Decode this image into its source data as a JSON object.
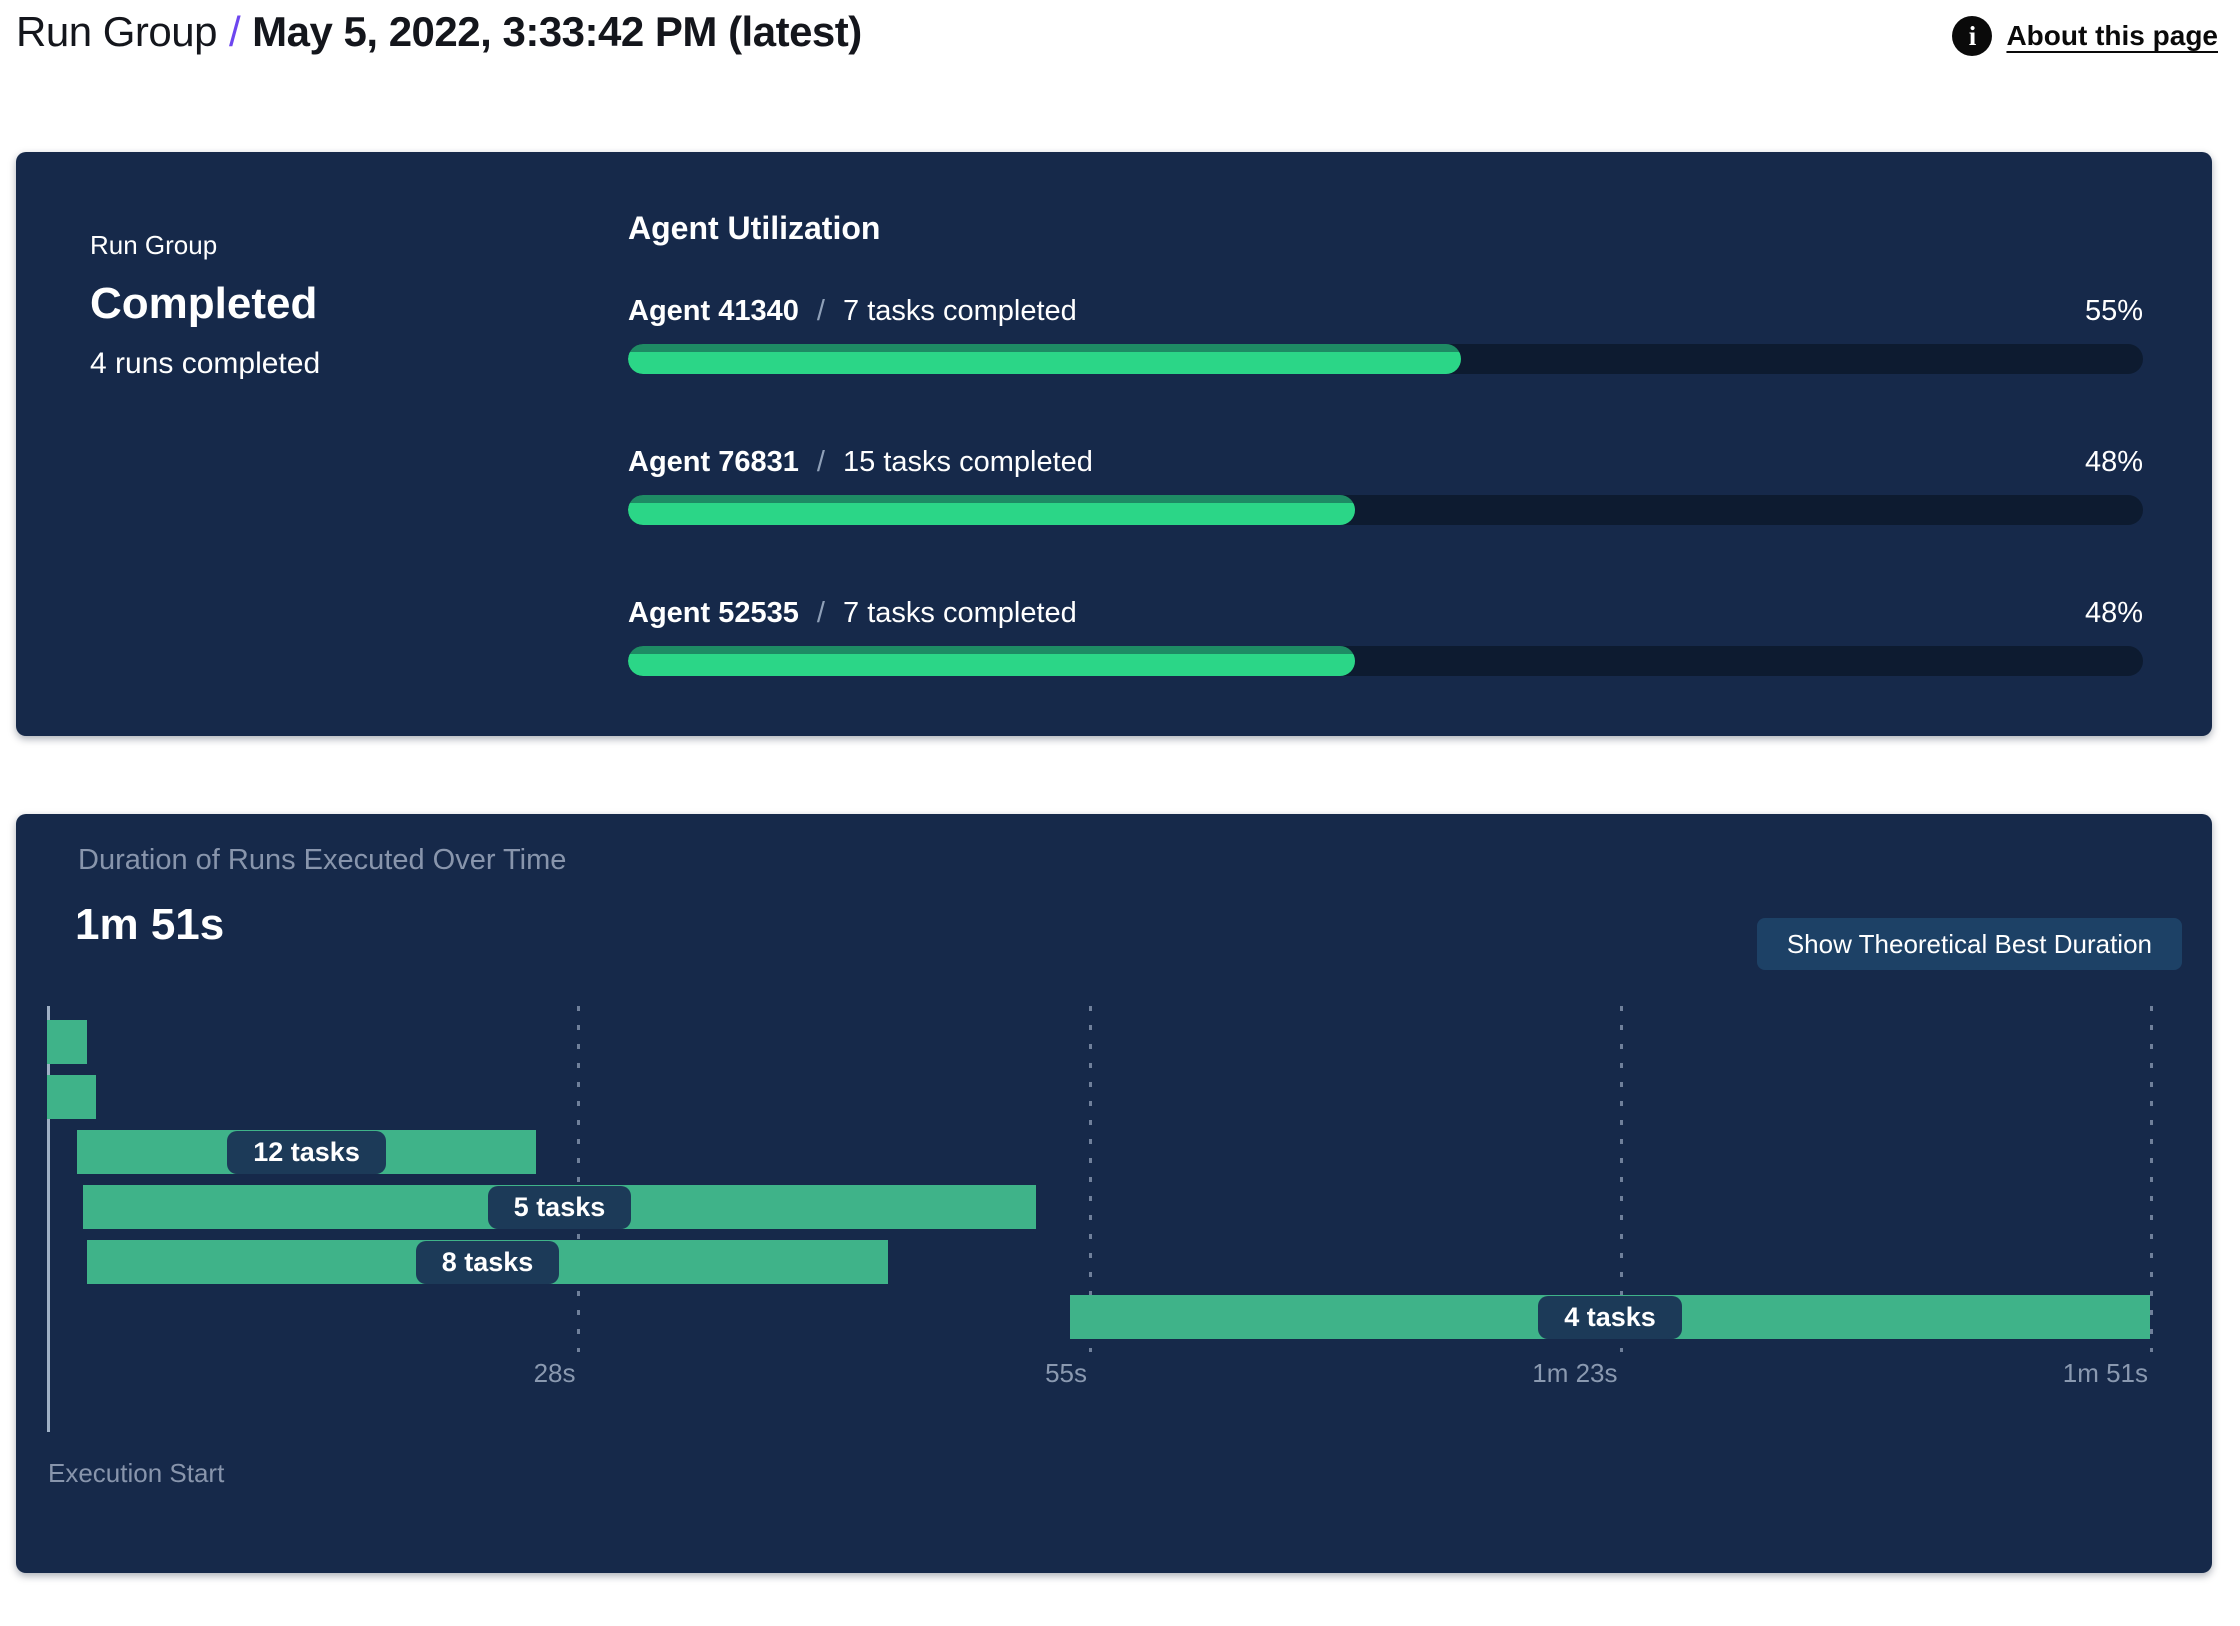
{
  "header": {
    "breadcrumb": "Run Group",
    "separator": "/",
    "title": "May 5, 2022, 3:33:42 PM (latest)",
    "about_link": "About this page",
    "info_icon_glyph": "i"
  },
  "run_group_panel": {
    "label": "Run Group",
    "status": "Completed",
    "runs_completed": "4 runs completed",
    "agent_utilization": {
      "title": "Agent Utilization",
      "separator": "/",
      "agents": [
        {
          "name": "Agent 41340",
          "tasks": "7 tasks completed",
          "percent_label": "55%",
          "percent": 55
        },
        {
          "name": "Agent 76831",
          "tasks": "15 tasks completed",
          "percent_label": "48%",
          "percent": 48
        },
        {
          "name": "Agent 52535",
          "tasks": "7 tasks completed",
          "percent_label": "48%",
          "percent": 48
        }
      ]
    }
  },
  "duration_panel": {
    "title": "Duration of Runs Executed Over Time",
    "total_duration": "1m 51s",
    "button_label": "Show Theoretical Best Duration",
    "execution_start_label": "Execution Start",
    "total_seconds": 111,
    "ticks": [
      {
        "label": "28s",
        "seconds": 28
      },
      {
        "label": "55s",
        "seconds": 55
      },
      {
        "label": "1m 23s",
        "seconds": 83
      },
      {
        "label": "1m 51s",
        "seconds": 111
      }
    ],
    "runs": [
      {
        "label": "",
        "start": 0,
        "end": 2.1
      },
      {
        "label": "",
        "start": 0,
        "end": 2.6
      },
      {
        "label": "12 tasks",
        "start": 1.6,
        "end": 25.8
      },
      {
        "label": "5 tasks",
        "start": 1.9,
        "end": 52.2
      },
      {
        "label": "8 tasks",
        "start": 2.1,
        "end": 44.4
      },
      {
        "label": "4 tasks",
        "start": 54,
        "end": 111
      }
    ]
  },
  "colors": {
    "panel_navy": "#16294A",
    "progress_track": "#0D1B30",
    "progress_green": "#2BD687",
    "progress_green_edge": "#1E8B64",
    "gantt_green": "#3FB389",
    "pill_navy": "#1C3A58",
    "button_blue": "#1D4166",
    "separator_purple": "#6D46EF",
    "muted_text": "#8A99B0"
  },
  "chart_data": [
    {
      "type": "bar",
      "title": "Agent Utilization",
      "orientation": "horizontal",
      "categories": [
        "Agent 41340",
        "Agent 76831",
        "Agent 52535"
      ],
      "values": [
        55,
        48,
        48
      ],
      "value_unit": "%",
      "annotations": [
        "7 tasks completed",
        "15 tasks completed",
        "7 tasks completed"
      ],
      "xlim": [
        0,
        100
      ],
      "grid": false,
      "legend": false
    },
    {
      "type": "bar",
      "subtype": "gantt",
      "title": "Duration of Runs Executed Over Time",
      "total_duration_label": "1m 51s",
      "xlabel": "Execution Start",
      "x_unit": "seconds",
      "xlim": [
        0,
        111
      ],
      "x_ticks": [
        {
          "label": "28s",
          "value": 28
        },
        {
          "label": "55s",
          "value": 55
        },
        {
          "label": "1m 23s",
          "value": 83
        },
        {
          "label": "1m 51s",
          "value": 111
        }
      ],
      "grid": "dashed-vertical",
      "series": [
        {
          "name": "run-1",
          "start": 0,
          "end": 2.1,
          "tasks": null
        },
        {
          "name": "run-2",
          "start": 0,
          "end": 2.6,
          "tasks": null
        },
        {
          "name": "run-3",
          "start": 1.6,
          "end": 25.8,
          "tasks": 12
        },
        {
          "name": "run-4",
          "start": 1.9,
          "end": 52.2,
          "tasks": 5
        },
        {
          "name": "run-5",
          "start": 2.1,
          "end": 44.4,
          "tasks": 8
        },
        {
          "name": "run-6",
          "start": 54,
          "end": 111,
          "tasks": 4
        }
      ]
    }
  ]
}
